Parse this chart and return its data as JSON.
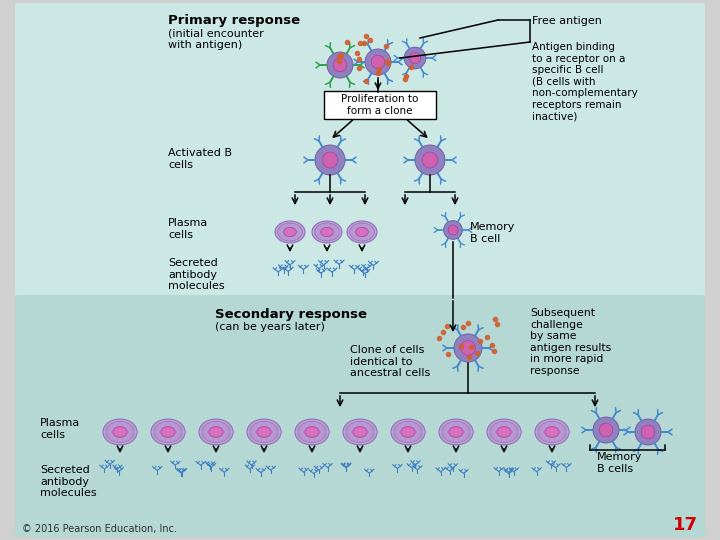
{
  "bg_top": "#cce8e5",
  "bg_bottom": "#b5d8d5",
  "bg_page": "#d0d0d0",
  "primary_title": "Primary response",
  "primary_subtitle": "(initial encounter\nwith antigen)",
  "secondary_title": "Secondary response",
  "secondary_subtitle": "(can be years later)",
  "label_activated_b": "Activated B\ncells",
  "label_plasma_top": "Plasma\ncells",
  "label_secreted_top": "Secreted\nantibody\nmolecules",
  "label_memory_b_cell": "Memory\nB cell",
  "label_proliferation": "Proliferation to\nform a clone",
  "label_free_antigen": "Free antigen",
  "label_antigen_binding": "Antigen binding\nto a receptor on a\nspecific B cell\n(B cells with\nnon-complementary\nreceptors remain\ninactive)",
  "label_clone_of_cells": "Clone of cells\nidentical to\nancestral cells",
  "label_subsequent": "Subsequent\nchallenge\nby same\nantigen results\nin more rapid\nresponse",
  "label_plasma_bottom": "Plasma\ncells",
  "label_secreted_bottom": "Secreted\nantibody\nmolecules",
  "label_memory_b_cells": "Memory\nB cells",
  "page_number": "17",
  "copyright": "© 2016 Pearson Education, Inc.",
  "cell_body": "#9080c0",
  "cell_body_edge": "#7060a0",
  "cell_nucleus": "#d060b0",
  "cell_blue_receptor": "#4488cc",
  "cell_green_receptor": "#30a050",
  "plasma_outer": "#b090d0",
  "plasma_inner": "#c890c8",
  "plasma_nucleus": "#d870c0",
  "antibody_color": "#4080c0",
  "antigen_dot_color": "#d06030",
  "text_color": "#000000"
}
